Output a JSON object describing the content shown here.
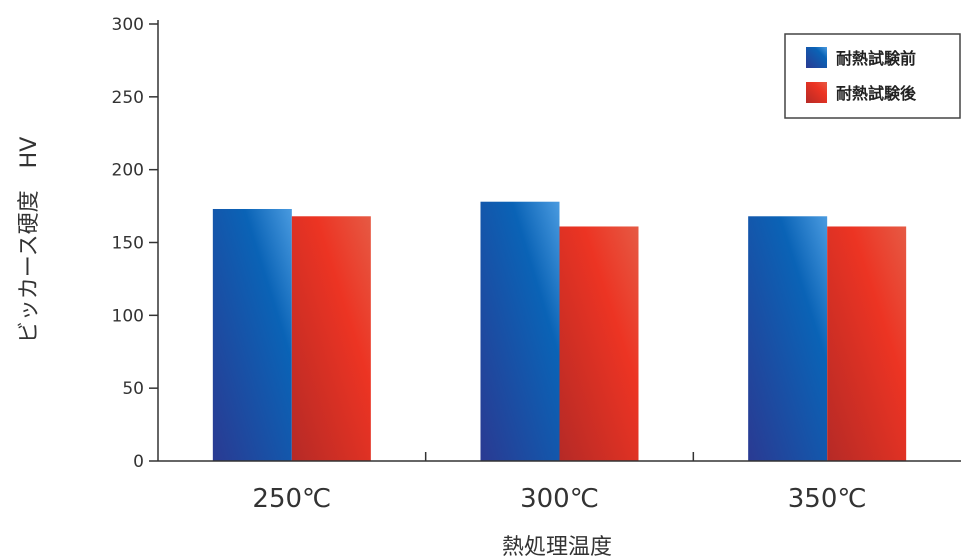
{
  "chart_data": {
    "type": "bar",
    "categories": [
      "250℃",
      "300℃",
      "350℃"
    ],
    "series": [
      {
        "name": "耐熱試験前",
        "values": [
          173,
          178,
          168
        ],
        "color": "#1660b8"
      },
      {
        "name": "耐熱試験後",
        "values": [
          168,
          161,
          161
        ],
        "color": "#e8382a"
      }
    ],
    "xlabel": "熱処理温度",
    "ylabel": "ビッカース硬度　HV",
    "ylim": [
      0,
      300
    ],
    "yticks": [
      "0",
      "50",
      "100",
      "150",
      "200",
      "250",
      "300"
    ],
    "grid": false,
    "legend_position": "top-right"
  }
}
